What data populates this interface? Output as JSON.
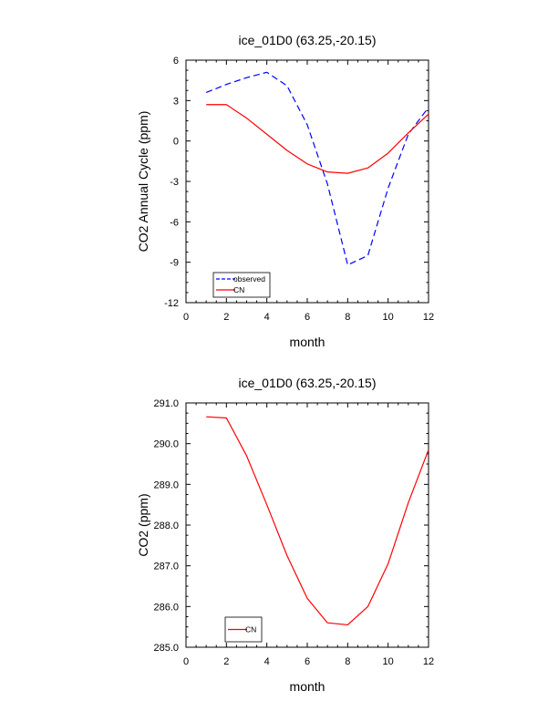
{
  "chart_data": [
    {
      "type": "line",
      "title": "ice_01D0 (63.25,-20.15)",
      "xlabel": "month",
      "ylabel": "CO2 Annual Cycle (ppm)",
      "xlim": [
        0,
        12
      ],
      "ylim": [
        -12,
        6
      ],
      "x_ticks": [
        0,
        2,
        4,
        6,
        8,
        10,
        12
      ],
      "x_tick_labels": [
        "0",
        "2",
        "4",
        "6",
        "8",
        "10",
        "12"
      ],
      "y_ticks": [
        -12,
        -9,
        -6,
        -3,
        0,
        3,
        6
      ],
      "y_tick_labels": [
        "-12",
        "-9",
        "-6",
        "-3",
        "0",
        "3",
        "6"
      ],
      "grid": false,
      "legend_position": "bottom-left",
      "x": [
        1,
        2,
        3,
        4,
        5,
        6,
        7,
        8,
        9,
        10,
        11,
        12
      ],
      "series": [
        {
          "name": "observed",
          "color": "#0000ff",
          "dash": "dashed",
          "values": [
            3.6,
            4.2,
            4.7,
            5.1,
            4.1,
            1.2,
            -3.2,
            -9.2,
            -8.5,
            -3.5,
            0.5,
            2.5
          ]
        },
        {
          "name": "CN",
          "color": "#ff0000",
          "dash": "solid",
          "values": [
            2.7,
            2.7,
            1.7,
            0.5,
            -0.7,
            -1.7,
            -2.3,
            -2.4,
            -2.0,
            -0.9,
            0.6,
            2.0
          ]
        }
      ]
    },
    {
      "type": "line",
      "title": "ice_01D0 (63.25,-20.15)",
      "xlabel": "month",
      "ylabel": "CO2 (ppm)",
      "xlim": [
        0,
        12
      ],
      "ylim": [
        285,
        291
      ],
      "x_ticks": [
        0,
        2,
        4,
        6,
        8,
        10,
        12
      ],
      "x_tick_labels": [
        "0",
        "2",
        "4",
        "6",
        "8",
        "10",
        "12"
      ],
      "y_ticks": [
        285,
        286,
        287,
        288,
        289,
        290,
        291
      ],
      "y_tick_labels": [
        "285.0",
        "286.0",
        "287.0",
        "288.0",
        "289.0",
        "290.0",
        "291.0"
      ],
      "grid": false,
      "legend_position": "bottom-left",
      "x": [
        1,
        2,
        3,
        4,
        5,
        6,
        7,
        8,
        9,
        10,
        11,
        12
      ],
      "series": [
        {
          "name": "CN",
          "color": "#ff0000",
          "dash": "solid",
          "values": [
            290.66,
            290.63,
            289.7,
            288.5,
            287.25,
            286.2,
            285.6,
            285.55,
            286.0,
            287.05,
            288.55,
            289.85
          ]
        }
      ]
    }
  ]
}
